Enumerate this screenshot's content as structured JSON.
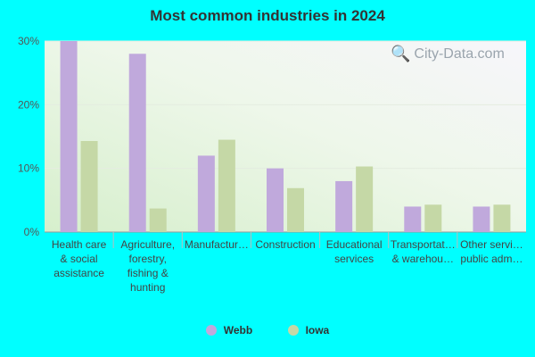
{
  "chart_data": {
    "type": "bar",
    "title": "Most common industries in 2024",
    "categories": [
      [
        "Health care",
        "& social",
        "assistance"
      ],
      [
        "Agriculture,",
        "forestry,",
        "fishing &",
        "hunting"
      ],
      [
        "Manufactur…"
      ],
      [
        "Construction"
      ],
      [
        "Educational",
        "services"
      ],
      [
        "Transportat…",
        "& warehou…"
      ],
      [
        "Other servi…",
        "public adm…"
      ]
    ],
    "series": [
      {
        "name": "Webb",
        "color": "#c0a9dc",
        "values": [
          30,
          28,
          12,
          10,
          8,
          4,
          4
        ]
      },
      {
        "name": "Iowa",
        "color": "#c5d8a6",
        "values": [
          14.3,
          3.7,
          14.5,
          6.9,
          10.3,
          4.3,
          4.3
        ]
      }
    ],
    "ylim": [
      0,
      30
    ],
    "yticks": [
      "0%",
      "10%",
      "20%",
      "30%"
    ],
    "legend_position": "bottom"
  },
  "watermark": "City-Data.com",
  "colors": {
    "background": "#00FFFF",
    "plot_background": "#eaf5e3"
  }
}
